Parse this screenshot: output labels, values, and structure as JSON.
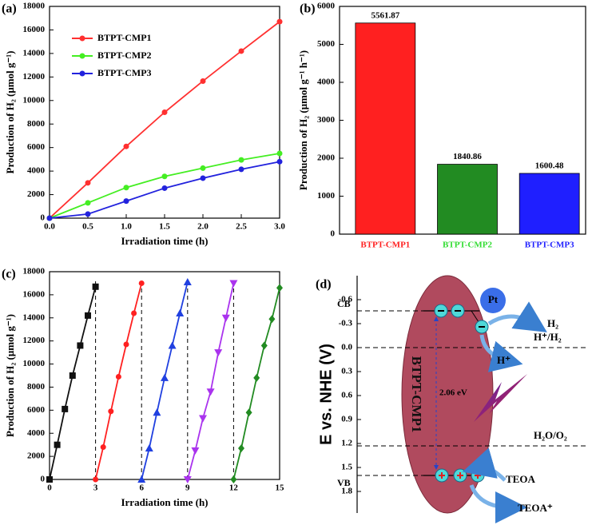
{
  "chart_data": [
    {
      "type": "line",
      "title": "(a)",
      "xlabel": "Irradiation time (h)",
      "ylabel": "Production of H₂ (μmol g⁻¹)",
      "x": [
        0,
        0.5,
        1,
        1.5,
        2,
        2.5,
        3
      ],
      "series": [
        {
          "name": "BTPT-CMP1",
          "color": "#ff3030",
          "marker": "circle",
          "values": [
            0,
            3000,
            6100,
            9000,
            11650,
            14200,
            16700
          ]
        },
        {
          "name": "BTPT-CMP2",
          "color": "#44ee22",
          "marker": "circle",
          "values": [
            0,
            1300,
            2600,
            3550,
            4250,
            4950,
            5500
          ]
        },
        {
          "name": "BTPT-CMP3",
          "color": "#2222dd",
          "marker": "circle",
          "values": [
            0,
            350,
            1450,
            2550,
            3400,
            4150,
            4800
          ]
        }
      ],
      "xlim": [
        0,
        3
      ],
      "xticks": [
        {
          "value": 0,
          "label": "0.0"
        },
        0.5,
        {
          "value": 1,
          "label": "1.0"
        },
        1.5,
        {
          "value": 2,
          "label": "2.0"
        },
        2.5,
        {
          "value": 3,
          "label": "3.0"
        }
      ],
      "ylim": [
        0,
        18000
      ],
      "yticks": [
        0,
        2000,
        4000,
        6000,
        8000,
        10000,
        12000,
        14000,
        16000,
        18000
      ],
      "legend": "upper left"
    },
    {
      "type": "bar",
      "title": "(b)",
      "ylabel": "Production of H₂ (μmol g⁻¹ h⁻¹)",
      "categories": [
        "BTPT-CMP1",
        "BTPT-CMP2",
        "BTPT-CMP3"
      ],
      "values": [
        5561.87,
        1840.86,
        1600.48
      ],
      "colors": [
        "#ff2020",
        "#228b22",
        "#1f1fff"
      ],
      "label_colors": [
        "#ff2020",
        "#33dd33",
        "#1f1fff"
      ],
      "ylim": [
        0,
        6000
      ],
      "yticks": [
        0,
        1000,
        2000,
        3000,
        4000,
        5000,
        6000
      ]
    },
    {
      "type": "line",
      "title": "(c)",
      "xlabel": "Irradiation time (h)",
      "ylabel": "Production of H₂ (μmol g⁻¹)",
      "series": [
        {
          "color": "#111111",
          "marker": "square",
          "x": [
            0,
            0.5,
            1,
            1.5,
            2,
            2.5,
            3
          ],
          "values": [
            0,
            3000,
            6100,
            9000,
            11600,
            14200,
            16700
          ]
        },
        {
          "color": "#ff2020",
          "marker": "circle",
          "x": [
            3,
            3.5,
            4,
            4.5,
            5,
            5.5,
            6
          ],
          "values": [
            0,
            2800,
            5900,
            8900,
            11700,
            14400,
            17000
          ]
        },
        {
          "color": "#2040e0",
          "marker": "triangle-up",
          "x": [
            6,
            6.5,
            7,
            7.5,
            8,
            8.5,
            9
          ],
          "values": [
            0,
            2700,
            5800,
            8800,
            11600,
            14400,
            17100
          ]
        },
        {
          "color": "#aa33ee",
          "marker": "triangle-down",
          "x": [
            9,
            9.5,
            10,
            10.5,
            11,
            11.5,
            12
          ],
          "values": [
            0,
            2500,
            5300,
            7600,
            11000,
            14000,
            17000
          ]
        },
        {
          "color": "#228b22",
          "marker": "diamond",
          "x": [
            12,
            12.5,
            13,
            13.5,
            14,
            14.5,
            15
          ],
          "values": [
            0,
            2700,
            5800,
            8800,
            11600,
            13900,
            16600
          ]
        }
      ],
      "xlim": [
        0,
        15
      ],
      "xticks": [
        0,
        3,
        6,
        9,
        12,
        15
      ],
      "ylim": [
        0,
        18000
      ],
      "yticks": [
        0,
        2000,
        4000,
        6000,
        8000,
        10000,
        12000,
        14000,
        16000,
        18000
      ]
    },
    {
      "type": "energy",
      "title": "(d)",
      "ylabel": "E vs. NHE (V)",
      "material": "BTPT-CMP1",
      "gap_label": "2.06 eV",
      "ylim": [
        -0.9,
        2.07
      ],
      "yticks": [
        -0.6,
        -0.3,
        {
          "value": 0,
          "label": "0.0"
        },
        0.3,
        0.6,
        0.9,
        1.2,
        1.5,
        1.8
      ],
      "bands": [
        {
          "name": "CB",
          "value": -0.46
        },
        {
          "name": "VB",
          "value": 1.6
        }
      ],
      "redox": [
        {
          "name": "H⁺/H₂",
          "value": 0
        },
        {
          "name": "H₂O/O₂",
          "value": 1.23
        }
      ],
      "annotations": [
        "Pt",
        "H₂",
        "H⁺",
        "TEOA",
        "TEOA⁺"
      ]
    }
  ]
}
